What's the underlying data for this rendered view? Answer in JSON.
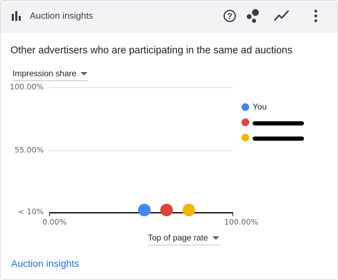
{
  "header": {
    "title": "Auction insights",
    "icons": [
      "bar-chart-icon",
      "help-icon",
      "scatter-chart-icon",
      "line-chart-icon",
      "more-vert-icon"
    ]
  },
  "subtitle": "Other advertisers who are participating in the same ad auctions",
  "y_metric_dropdown": "Impression share",
  "x_metric_dropdown": "Top of page rate",
  "chart_data": {
    "type": "scatter",
    "title": "",
    "ylabel": "Impression share",
    "xlabel": "Top of page rate",
    "y_ticks": [
      "100.00%",
      "55.00%",
      "< 10%"
    ],
    "x_ticks": [
      "0.00%",
      "100.00%"
    ],
    "xlim": [
      0,
      100
    ],
    "ylim": [
      10,
      100
    ],
    "series": [
      {
        "name": "You",
        "color": "#4285f4",
        "x": 52,
        "y": 10
      },
      {
        "name": "",
        "color": "#db4437",
        "x": 64,
        "y": 10,
        "label_redacted": true
      },
      {
        "name": "",
        "color": "#f4b400",
        "x": 76,
        "y": 10,
        "label_redacted": true
      }
    ],
    "grid": true,
    "legend": "right"
  },
  "footer_link": "Auction insights"
}
